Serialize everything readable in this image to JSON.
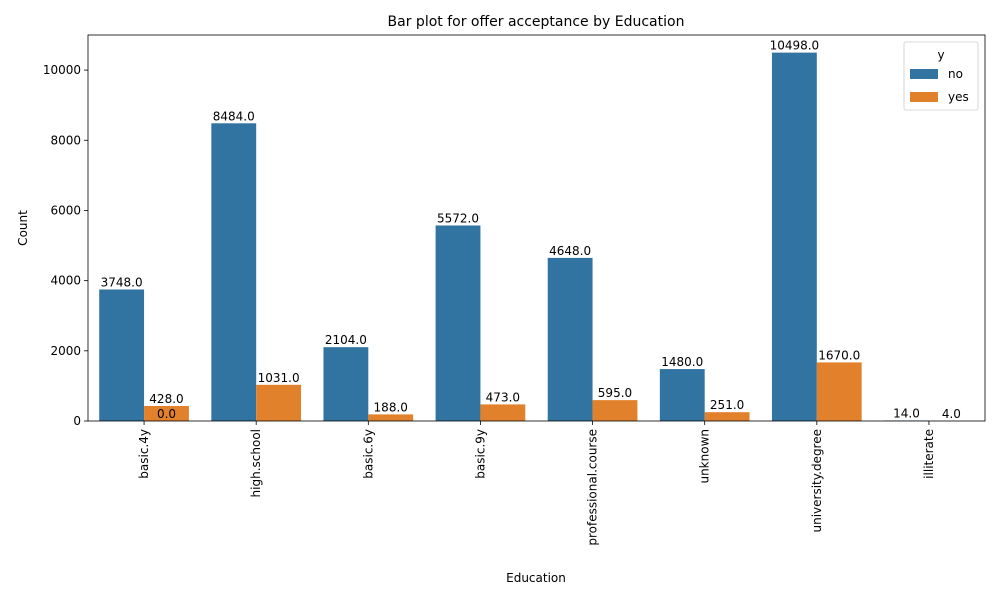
{
  "chart_data": {
    "type": "bar",
    "title": "Bar plot for offer acceptance by Education",
    "xlabel": "Education",
    "ylabel": "Count",
    "categories": [
      "basic.4y",
      "high.school",
      "basic.6y",
      "basic.9y",
      "professional.course",
      "unknown",
      "university.degree",
      "illiterate"
    ],
    "series": [
      {
        "name": "no",
        "color": "#3274a1",
        "values": [
          3748,
          8484,
          2104,
          5572,
          4648,
          1480,
          10498,
          14
        ]
      },
      {
        "name": "yes",
        "color": "#e1812c",
        "values": [
          428,
          1031,
          188,
          473,
          595,
          251,
          1670,
          4
        ]
      }
    ],
    "bar_labels": {
      "no": [
        "3748.0",
        "8484.0",
        "2104.0",
        "5572.0",
        "4648.0",
        "1480.0",
        "10498.0",
        "14.0"
      ],
      "yes": [
        "428.0",
        "1031.0",
        "188.0",
        "473.0",
        "595.0",
        "251.0",
        "1670.0",
        "4.0"
      ],
      "extra": "0.0"
    },
    "ylim": [
      0,
      11000
    ],
    "yticks": [
      0,
      2000,
      4000,
      6000,
      8000,
      10000
    ],
    "grid": false,
    "legend": {
      "title": "y",
      "position": "top-right"
    }
  }
}
